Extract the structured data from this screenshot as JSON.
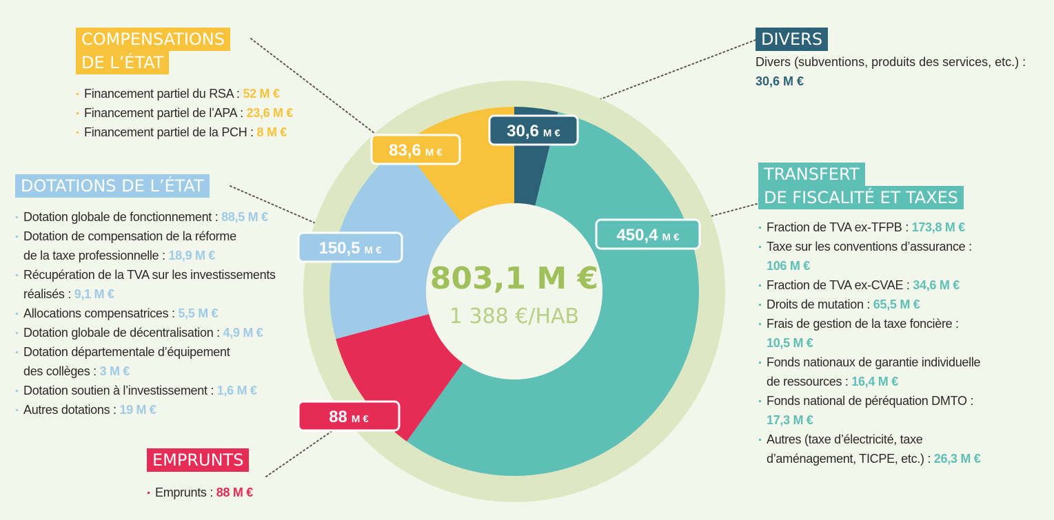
{
  "colors": {
    "compensations": "#f8c33b",
    "divers": "#2c6177",
    "transfert": "#5ebfb7",
    "dotations": "#9ecbe7",
    "emprunts": "#e62b54",
    "ring": "#dde8c3",
    "center": "#9fc05a"
  },
  "compensations": {
    "title_lines": [
      "COMPENSATIONS",
      "DE L’ÉTAT"
    ],
    "items": [
      {
        "label": "Financement partiel du RSA : ",
        "value": "52 M €"
      },
      {
        "label": "Financement partiel de l’APA : ",
        "value": "23,6 M €"
      },
      {
        "label": "Financement partiel de la PCH : ",
        "value": "8 M €"
      }
    ]
  },
  "divers": {
    "title": "DIVERS",
    "text": "Divers (subventions, produits des services, etc.) :",
    "value": "30,6 M €"
  },
  "dotations": {
    "title": "DOTATIONS DE L’ÉTAT",
    "items": [
      {
        "lines": [
          "Dotation globale de fonctionnement : "
        ],
        "value": "88,5 M €"
      },
      {
        "lines": [
          "Dotation de compensation de la réforme",
          "de la taxe professionnelle : "
        ],
        "value": "18,9 M €"
      },
      {
        "lines": [
          "Récupération de la TVA sur les investissements",
          "réalisés : "
        ],
        "value": "9,1 M €"
      },
      {
        "lines": [
          "Allocations compensatrices : "
        ],
        "value": "5,5 M €"
      },
      {
        "lines": [
          "Dotation globale de décentralisation : "
        ],
        "value": "4,9 M €"
      },
      {
        "lines": [
          "Dotation départementale d’équipement",
          "des collèges : "
        ],
        "value": "3 M €"
      },
      {
        "lines": [
          "Dotation soutien à l’investissement : "
        ],
        "value": "1,6 M €"
      },
      {
        "lines": [
          "Autres dotations : "
        ],
        "value": "19 M €"
      }
    ]
  },
  "transfert": {
    "title_lines": [
      "TRANSFERT",
      "DE FISCALITÉ ET TAXES"
    ],
    "items": [
      {
        "lines": [
          "Fraction de TVA ex-TFPB : "
        ],
        "value": "173,8 M €"
      },
      {
        "lines": [
          "Taxe sur les conventions d’assurance :",
          ""
        ],
        "value": "106 M €"
      },
      {
        "lines": [
          "Fraction de TVA ex-CVAE : "
        ],
        "value": "34,6 M €"
      },
      {
        "lines": [
          "Droits de mutation : "
        ],
        "value": "65,5 M €"
      },
      {
        "lines": [
          "Frais de gestion de la taxe foncière :",
          ""
        ],
        "value": "10,5 M €"
      },
      {
        "lines": [
          "Fonds nationaux de garantie individuelle",
          "de ressources : "
        ],
        "value": "16,4 M €"
      },
      {
        "lines": [
          "Fonds national de péréquation DMTO :",
          ""
        ],
        "value": "17,3 M €"
      },
      {
        "lines": [
          "Autres (taxe d’électricité, taxe",
          "d’aménagement, TICPE, etc.) : "
        ],
        "value": "26,3 M €"
      }
    ]
  },
  "emprunts": {
    "title": "EMPRUNTS",
    "items": [
      {
        "label": "Emprunts : ",
        "value": "88 M €"
      }
    ]
  },
  "center": {
    "total": "803,1 M €",
    "per_hab": "1 388 €/HAB"
  },
  "chart_data": {
    "type": "pie",
    "variant": "donut",
    "total": 803.1,
    "unit": "M €",
    "slices": [
      {
        "key": "divers",
        "value": 30.6,
        "num_label": "30,6",
        "unit_label": "M €",
        "color": "#2c6177"
      },
      {
        "key": "transfert",
        "value": 450.4,
        "num_label": "450,4",
        "unit_label": "M €",
        "color": "#5ebfb7"
      },
      {
        "key": "emprunts",
        "value": 88,
        "num_label": "88",
        "unit_label": "M €",
        "color": "#e62b54"
      },
      {
        "key": "dotations",
        "value": 150.5,
        "num_label": "150,5",
        "unit_label": "M €",
        "color": "#9ecbe7"
      },
      {
        "key": "compensations",
        "value": 83.6,
        "num_label": "83,6",
        "unit_label": "M €",
        "color": "#f8c33b"
      }
    ]
  }
}
